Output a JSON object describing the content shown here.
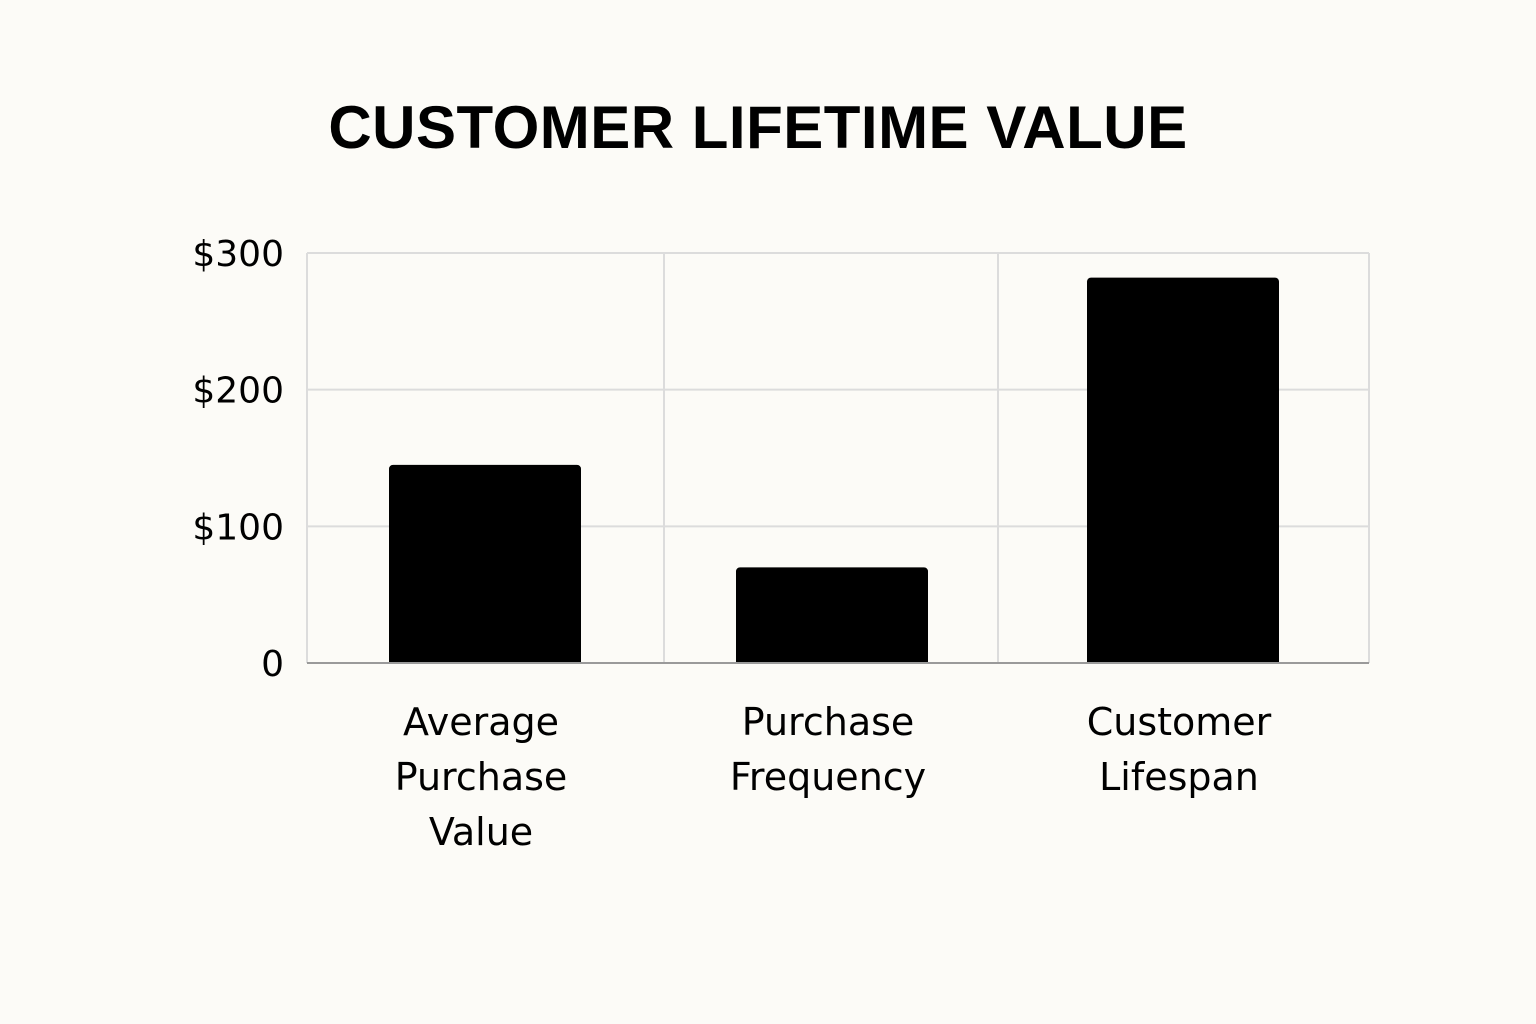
{
  "chart_data": {
    "type": "bar",
    "title": "CUSTOMER LIFETIME VALUE",
    "categories": [
      [
        "Average",
        "Purchase",
        "Value"
      ],
      [
        "Purchase",
        "Frequency"
      ],
      [
        "Customer",
        "Lifespan"
      ]
    ],
    "values": [
      145,
      70,
      282
    ],
    "ylim": [
      0,
      300
    ],
    "yticks": [
      0,
      100,
      200,
      300
    ],
    "ytick_labels": [
      "0",
      "$100",
      "$200",
      "$300"
    ],
    "bar_color": "#000000",
    "grid": true,
    "grid_color": "#dcdcdc",
    "axis_color": "#9a9a9a",
    "background": "#fcfbf7"
  }
}
